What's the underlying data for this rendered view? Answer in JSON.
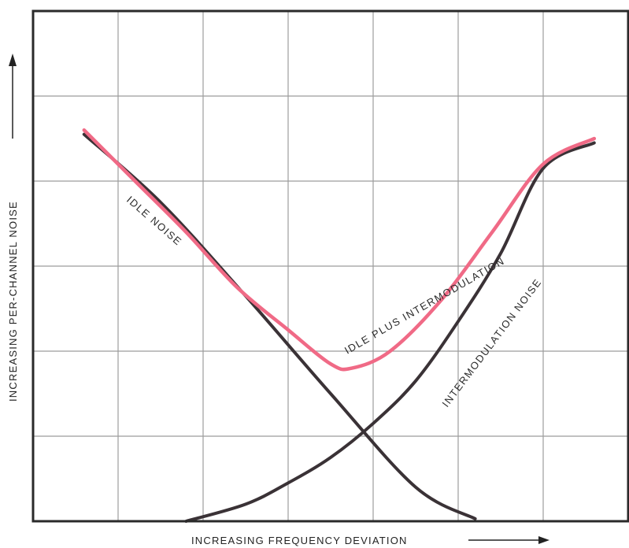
{
  "chart_data": {
    "type": "line",
    "xlabel": "INCREASING FREQUENCY DEVIATION",
    "ylabel": "INCREASING PER-CHANNEL NOISE",
    "xlim": [
      0,
      7
    ],
    "ylim": [
      0,
      6
    ],
    "grid": true,
    "grid_x": [
      1,
      2,
      3,
      4,
      5,
      6
    ],
    "grid_y": [
      1,
      2,
      3,
      4,
      5
    ],
    "series": [
      {
        "name": "IDLE NOISE",
        "color": "#3a3236",
        "points": [
          [
            0.6,
            4.55
          ],
          [
            1.5,
            3.75
          ],
          [
            2.5,
            2.65
          ],
          [
            3.5,
            1.5
          ],
          [
            4.5,
            0.4
          ],
          [
            5.2,
            0.03
          ]
        ]
      },
      {
        "name": "INTERMODULATION NOISE",
        "color": "#3a3236",
        "points": [
          [
            1.8,
            0.0
          ],
          [
            2.5,
            0.2
          ],
          [
            3.0,
            0.45
          ],
          [
            3.5,
            0.75
          ],
          [
            4.0,
            1.15
          ],
          [
            4.5,
            1.65
          ],
          [
            5.0,
            2.35
          ],
          [
            5.5,
            3.15
          ],
          [
            6.0,
            4.15
          ],
          [
            6.6,
            4.45
          ]
        ]
      },
      {
        "name": "IDLE PLUS INTERMODULATION",
        "color": "#f06a86",
        "points": [
          [
            0.6,
            4.6
          ],
          [
            1.2,
            4.0
          ],
          [
            1.8,
            3.4
          ],
          [
            2.4,
            2.75
          ],
          [
            3.0,
            2.25
          ],
          [
            3.5,
            1.85
          ],
          [
            3.75,
            1.8
          ],
          [
            4.2,
            2.0
          ],
          [
            4.8,
            2.6
          ],
          [
            5.4,
            3.4
          ],
          [
            6.0,
            4.2
          ],
          [
            6.6,
            4.5
          ]
        ]
      }
    ]
  }
}
